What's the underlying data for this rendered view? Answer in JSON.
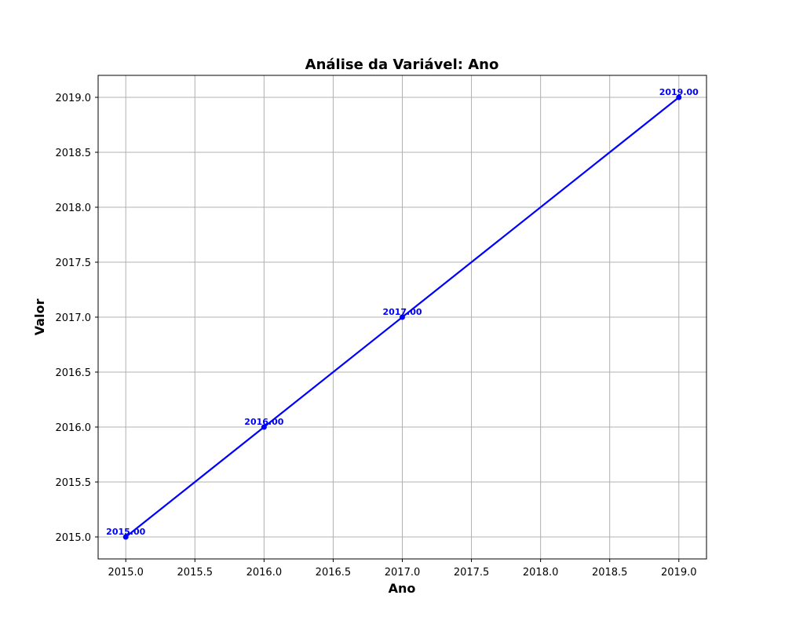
{
  "chart_data": {
    "type": "line",
    "title": "Análise da Variável: Ano",
    "xlabel": "Ano",
    "ylabel": "Valor",
    "xlim": [
      2014.8,
      2019.2
    ],
    "ylim": [
      2014.8,
      2019.2
    ],
    "x_ticks": [
      2015.0,
      2015.5,
      2016.0,
      2016.5,
      2017.0,
      2017.5,
      2018.0,
      2018.5,
      2019.0
    ],
    "y_ticks": [
      2015.0,
      2015.5,
      2016.0,
      2016.5,
      2017.0,
      2017.5,
      2018.0,
      2018.5,
      2019.0
    ],
    "x_tick_labels": [
      "2015.0",
      "2015.5",
      "2016.0",
      "2016.5",
      "2017.0",
      "2017.5",
      "2018.0",
      "2018.5",
      "2019.0"
    ],
    "y_tick_labels": [
      "2015.0",
      "2015.5",
      "2016.0",
      "2016.5",
      "2017.0",
      "2017.5",
      "2018.0",
      "2018.5",
      "2019.0"
    ],
    "grid": true,
    "series": [
      {
        "x": [
          2015,
          2016,
          2017,
          2019
        ],
        "y": [
          2015,
          2016,
          2017,
          2019
        ],
        "data_labels": [
          "2015.00",
          "2016.00",
          "2017.00",
          "2019.00"
        ],
        "color": "#0000ff",
        "marker": "circle"
      }
    ]
  }
}
